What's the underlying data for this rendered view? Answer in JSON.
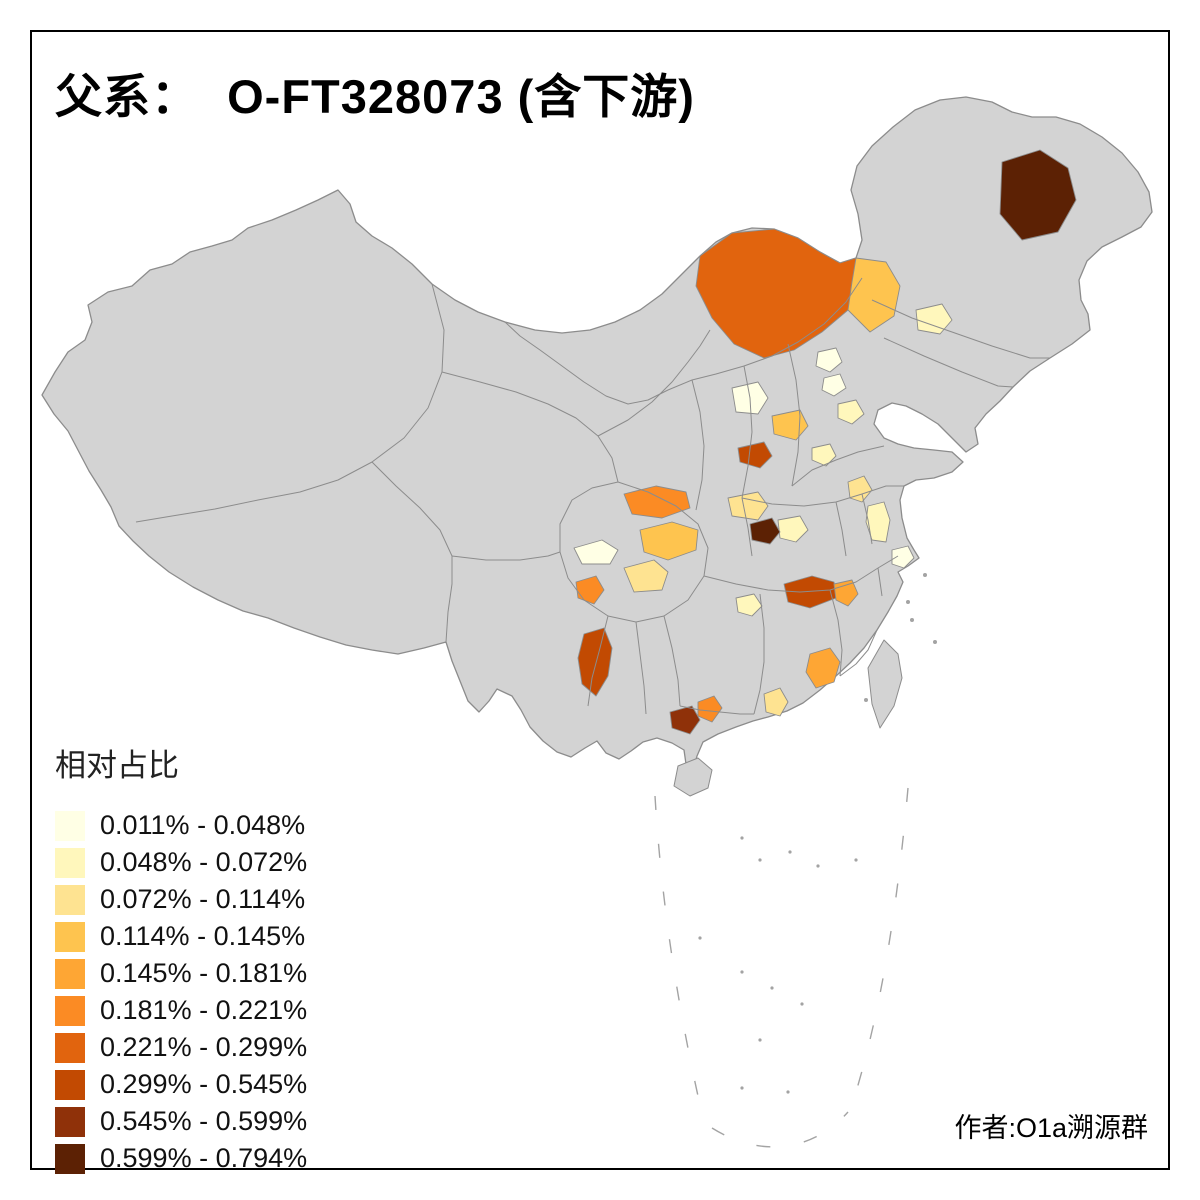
{
  "title": "父系：  O-FT328073 (含下游)",
  "legend": {
    "title": "相对占比",
    "items": [
      {
        "label": "0.011% - 0.048%",
        "color": "#FFFFE5"
      },
      {
        "label": "0.048% - 0.072%",
        "color": "#FFF7BC"
      },
      {
        "label": "0.072% - 0.114%",
        "color": "#FEE391"
      },
      {
        "label": "0.114% - 0.145%",
        "color": "#FEC44F"
      },
      {
        "label": "0.145% - 0.181%",
        "color": "#FEA634"
      },
      {
        "label": "0.181% - 0.221%",
        "color": "#FB8B24"
      },
      {
        "label": "0.221% - 0.299%",
        "color": "#E1640E"
      },
      {
        "label": "0.299% - 0.545%",
        "color": "#C24A02"
      },
      {
        "label": "0.545% - 0.599%",
        "color": "#8F3109"
      },
      {
        "label": "0.599% - 0.794%",
        "color": "#5C2104"
      }
    ]
  },
  "attribution": "作者:O1a溯源群",
  "map": {
    "base_fill": "#D3D3D3",
    "border_color": "#8C8C8C",
    "background": "#FFFFFF"
  }
}
